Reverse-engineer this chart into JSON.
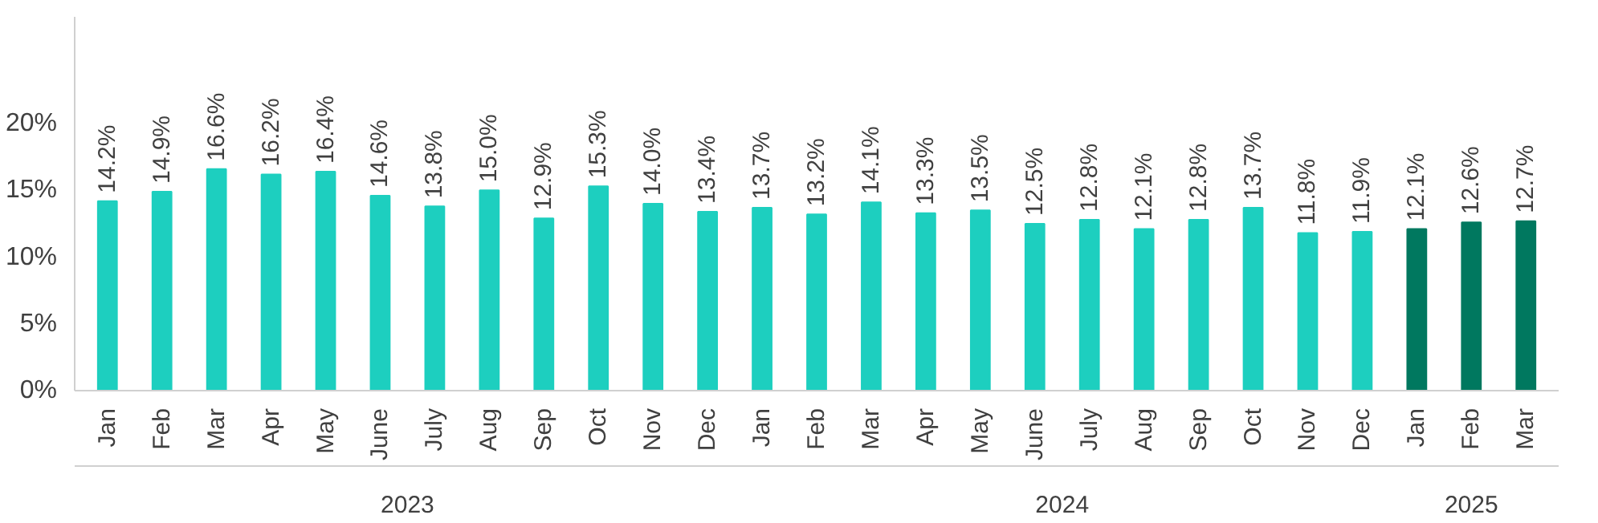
{
  "chart_data": {
    "type": "bar",
    "categories": [
      "Jan",
      "Feb",
      "Mar",
      "Apr",
      "May",
      "June",
      "July",
      "Aug",
      "Sep",
      "Oct",
      "Nov",
      "Dec",
      "Jan",
      "Feb",
      "Mar",
      "Apr",
      "May",
      "June",
      "July",
      "Aug",
      "Sep",
      "Oct",
      "Nov",
      "Dec",
      "Jan",
      "Feb",
      "Mar"
    ],
    "values": [
      14.2,
      14.9,
      16.6,
      16.2,
      16.4,
      14.6,
      13.8,
      15.0,
      12.9,
      15.3,
      14.0,
      13.4,
      13.7,
      13.2,
      14.1,
      13.3,
      13.5,
      12.5,
      12.8,
      12.1,
      12.8,
      13.7,
      11.8,
      11.9,
      12.1,
      12.6,
      12.7
    ],
    "value_labels": [
      "14.2%",
      "14.9%",
      "16.6%",
      "16.2%",
      "16.4%",
      "14.6%",
      "13.8%",
      "15.0%",
      "12.9%",
      "15.3%",
      "14.0%",
      "13.4%",
      "13.7%",
      "13.2%",
      "14.1%",
      "13.3%",
      "13.5%",
      "12.5%",
      "12.8%",
      "12.1%",
      "12.8%",
      "13.7%",
      "11.8%",
      "11.9%",
      "12.1%",
      "12.6%",
      "12.7%"
    ],
    "colors": [
      "#1dcfbf",
      "#1dcfbf",
      "#1dcfbf",
      "#1dcfbf",
      "#1dcfbf",
      "#1dcfbf",
      "#1dcfbf",
      "#1dcfbf",
      "#1dcfbf",
      "#1dcfbf",
      "#1dcfbf",
      "#1dcfbf",
      "#1dcfbf",
      "#1dcfbf",
      "#1dcfbf",
      "#1dcfbf",
      "#1dcfbf",
      "#1dcfbf",
      "#1dcfbf",
      "#1dcfbf",
      "#1dcfbf",
      "#1dcfbf",
      "#1dcfbf",
      "#1dcfbf",
      "#00785f",
      "#00785f",
      "#00785f"
    ],
    "annotations": [
      "2023",
      "2024",
      "2025"
    ],
    "ylim": [
      0,
      28
    ],
    "yticks": [
      {
        "value": 0,
        "label": "0%"
      },
      {
        "value": 5,
        "label": "5%"
      },
      {
        "value": 10,
        "label": "10%"
      },
      {
        "value": 15,
        "label": "15%"
      },
      {
        "value": 20,
        "label": "20%"
      }
    ],
    "grid": false
  }
}
